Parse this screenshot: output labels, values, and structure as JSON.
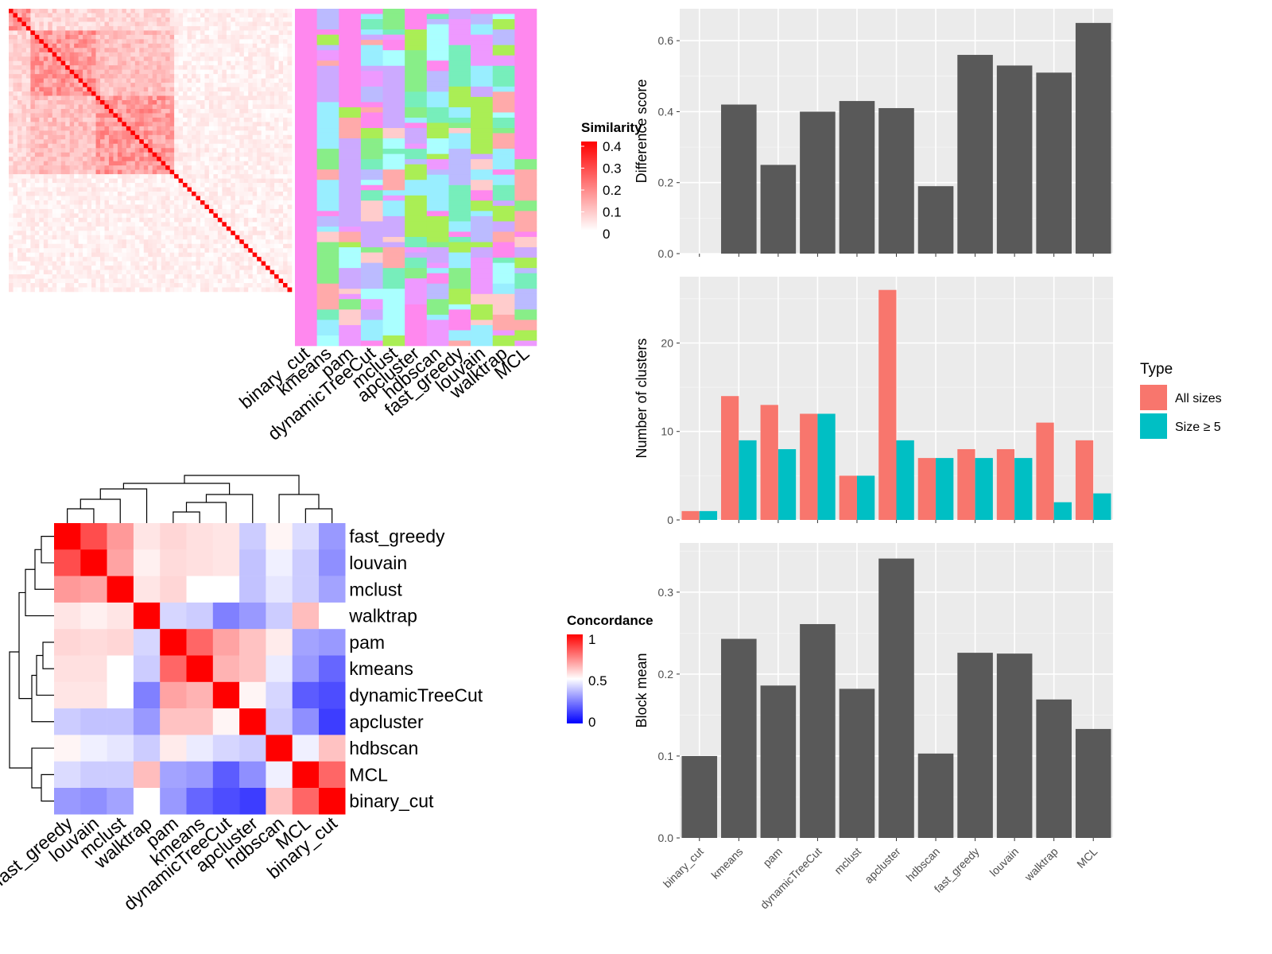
{
  "chart_data": [
    {
      "type": "heatmap",
      "name": "similarity_heatmap",
      "legend_title": "Similarity",
      "legend_ticks": [
        "0.4",
        "0.3",
        "0.2",
        "0.1",
        "0"
      ],
      "legend_range": [
        0,
        0.4
      ],
      "color_low": "#FFFFFF",
      "color_high": "#FF0000",
      "blocks": [
        [
          0,
          9
        ],
        [
          9,
          40
        ],
        [
          40,
          75
        ],
        [
          75,
          90
        ],
        [
          90,
          120
        ],
        [
          120,
          130
        ]
      ],
      "n": 130
    },
    {
      "type": "heatmap",
      "name": "cluster_label_annotation",
      "columns": [
        "binary_cut",
        "kmeans",
        "pam",
        "dynamicTreeCut",
        "mclust",
        "apcluster",
        "hdbscan",
        "fast_greedy",
        "louvain",
        "walktrap",
        "MCL"
      ],
      "palette": [
        "#FF88EE",
        "#88EE88",
        "#AAFFFF",
        "#CCAAFF",
        "#FFCCCC",
        "#AAEE55",
        "#77EEBB",
        "#FFAAAA",
        "#BBBBFF",
        "#EE99FF",
        "#99EEFF"
      ]
    },
    {
      "type": "heatmap",
      "name": "concordance_heatmap",
      "legend_title": "Concordance",
      "legend_ticks": [
        "1",
        "0.5",
        "0"
      ],
      "color_low": "#0000FF",
      "color_mid": "#FFFFFF",
      "color_high": "#FF0000",
      "rows": [
        "fast_greedy",
        "louvain",
        "mclust",
        "walktrap",
        "pam",
        "kmeans",
        "dynamicTreeCut",
        "apcluster",
        "hdbscan",
        "MCL",
        "binary_cut"
      ],
      "cols": [
        "fast_greedy",
        "louvain",
        "mclust",
        "walktrap",
        "pam",
        "kmeans",
        "dynamicTreeCut",
        "apcluster",
        "hdbscan",
        "MCL",
        "binary_cut"
      ],
      "values": [
        [
          1.0,
          0.85,
          0.7,
          0.55,
          0.58,
          0.56,
          0.55,
          0.4,
          0.52,
          0.43,
          0.3
        ],
        [
          0.85,
          1.0,
          0.68,
          0.53,
          0.57,
          0.56,
          0.55,
          0.38,
          0.47,
          0.4,
          0.28
        ],
        [
          0.7,
          0.68,
          1.0,
          0.55,
          0.58,
          0.5,
          0.5,
          0.38,
          0.45,
          0.4,
          0.32
        ],
        [
          0.55,
          0.53,
          0.55,
          1.0,
          0.42,
          0.4,
          0.25,
          0.3,
          0.4,
          0.63,
          0.5
        ],
        [
          0.58,
          0.57,
          0.58,
          0.42,
          1.0,
          0.8,
          0.68,
          0.62,
          0.54,
          0.32,
          0.3
        ],
        [
          0.56,
          0.56,
          0.5,
          0.4,
          0.8,
          1.0,
          0.65,
          0.62,
          0.46,
          0.3,
          0.2
        ],
        [
          0.55,
          0.55,
          0.5,
          0.25,
          0.68,
          0.65,
          1.0,
          0.52,
          0.42,
          0.18,
          0.15
        ],
        [
          0.4,
          0.38,
          0.38,
          0.3,
          0.62,
          0.62,
          0.52,
          1.0,
          0.4,
          0.28,
          0.12
        ],
        [
          0.52,
          0.47,
          0.45,
          0.4,
          0.54,
          0.46,
          0.42,
          0.4,
          1.0,
          0.47,
          0.62
        ],
        [
          0.43,
          0.4,
          0.4,
          0.63,
          0.32,
          0.3,
          0.18,
          0.28,
          0.47,
          1.0,
          0.8
        ],
        [
          0.3,
          0.28,
          0.32,
          0.5,
          0.3,
          0.2,
          0.15,
          0.12,
          0.62,
          0.8,
          1.0
        ]
      ]
    },
    {
      "type": "bar",
      "name": "difference_score",
      "categories": [
        "binary_cut",
        "kmeans",
        "pam",
        "dynamicTreeCut",
        "mclust",
        "apcluster",
        "hdbscan",
        "fast_greedy",
        "louvain",
        "walktrap",
        "MCL"
      ],
      "values": [
        0.0,
        0.42,
        0.25,
        0.4,
        0.43,
        0.41,
        0.19,
        0.56,
        0.53,
        0.51,
        0.65
      ],
      "ylabel": "Difference score",
      "ylim": [
        0,
        0.69
      ],
      "yticks": [
        0.0,
        0.2,
        0.4,
        0.6
      ],
      "ytick_labels": [
        "0.0",
        "0.2",
        "0.4",
        "0.6"
      ],
      "grid": true
    },
    {
      "type": "bar",
      "name": "number_of_clusters",
      "categories": [
        "binary_cut",
        "kmeans",
        "pam",
        "dynamicTreeCut",
        "mclust",
        "apcluster",
        "hdbscan",
        "fast_greedy",
        "louvain",
        "walktrap",
        "MCL"
      ],
      "series": [
        {
          "name": "All sizes",
          "color": "#F8766D",
          "values": [
            1,
            14,
            13,
            12,
            5,
            26,
            7,
            8,
            8,
            11,
            9
          ]
        },
        {
          "name": "Size ≥ 5",
          "color": "#00BFC4",
          "values": [
            1,
            9,
            8,
            12,
            5,
            9,
            7,
            7,
            7,
            2,
            3
          ]
        }
      ],
      "ylabel": "Number of clusters",
      "ylim": [
        0,
        27.5
      ],
      "yticks": [
        0,
        10,
        20
      ],
      "ytick_labels": [
        "0",
        "10",
        "20"
      ],
      "legend_title": "Type",
      "legend_position": "right",
      "grid": true
    },
    {
      "type": "bar",
      "name": "block_mean",
      "categories": [
        "binary_cut",
        "kmeans",
        "pam",
        "dynamicTreeCut",
        "mclust",
        "apcluster",
        "hdbscan",
        "fast_greedy",
        "louvain",
        "walktrap",
        "MCL"
      ],
      "values": [
        0.1,
        0.243,
        0.186,
        0.261,
        0.182,
        0.341,
        0.103,
        0.226,
        0.225,
        0.169,
        0.133
      ],
      "ylabel": "Block mean",
      "ylim": [
        0,
        0.36
      ],
      "yticks": [
        0.0,
        0.1,
        0.2,
        0.3
      ],
      "ytick_labels": [
        "0.0",
        "0.1",
        "0.2",
        "0.3"
      ],
      "grid": true
    }
  ]
}
